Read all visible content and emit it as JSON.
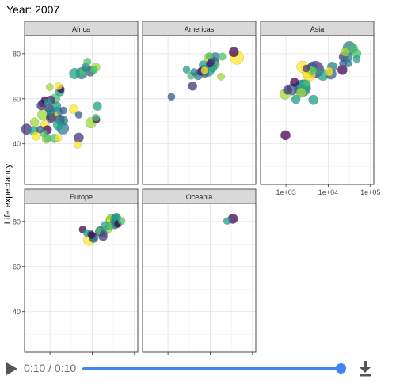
{
  "title": "Year: 2007",
  "player": {
    "time_text": "0:10 / 0:10",
    "progress": 1.0,
    "accent_color": "#4285f4",
    "play_icon": "play-icon",
    "download_icon": "download-icon"
  },
  "chart_data": {
    "type": "scatter",
    "layout": "faceted grid, 3 columns, free x and y scales per column/row",
    "xscale": "log10",
    "xlim": [
      250,
      120000
    ],
    "xtick_values": [
      1000,
      10000,
      100000
    ],
    "xtick_labels": [
      "1e+03",
      "1e+04",
      "1e+05"
    ],
    "ylim": [
      22,
      88
    ],
    "yticks": [
      40,
      60,
      80
    ],
    "ylabel": "Life expectancy",
    "xlabel": "",
    "grid": true,
    "legend": "none",
    "size_encodes": "population",
    "color_encodes": "country (viridis palette)",
    "palette": [
      "#440154",
      "#46337e",
      "#365c8d",
      "#277f8e",
      "#1fa187",
      "#4ac16d",
      "#9fda3a",
      "#fde725"
    ],
    "facets": [
      {
        "name": "Africa",
        "points": [
          {
            "x": 6223,
            "y": 72.3,
            "size": 2,
            "color": "#4ac16d"
          },
          {
            "x": 4797,
            "y": 42.7,
            "size": 3,
            "color": "#46337e"
          },
          {
            "x": 1441,
            "y": 56.7,
            "size": 2,
            "color": "#1fa187"
          },
          {
            "x": 12570,
            "y": 50.7,
            "size": 1,
            "color": "#440154"
          },
          {
            "x": 1217,
            "y": 52.3,
            "size": 3,
            "color": "#fde725"
          },
          {
            "x": 430,
            "y": 49.6,
            "size": 2,
            "color": "#9fda3a"
          },
          {
            "x": 2042,
            "y": 50.4,
            "size": 3,
            "color": "#277f8e"
          },
          {
            "x": 706,
            "y": 44.7,
            "size": 1,
            "color": "#4ac16d"
          },
          {
            "x": 1704,
            "y": 50.7,
            "size": 3,
            "color": "#365c8d"
          },
          {
            "x": 986,
            "y": 65.2,
            "size": 1,
            "color": "#9fda3a"
          },
          {
            "x": 278,
            "y": 46.5,
            "size": 4,
            "color": "#46337e"
          },
          {
            "x": 3633,
            "y": 55.3,
            "size": 2,
            "color": "#fde725"
          },
          {
            "x": 1545,
            "y": 48.3,
            "size": 3,
            "color": "#1fa187"
          },
          {
            "x": 2082,
            "y": 54.8,
            "size": 1,
            "color": "#365c8d"
          },
          {
            "x": 5581,
            "y": 71.3,
            "size": 5,
            "color": "#277f8e"
          },
          {
            "x": 12154,
            "y": 51.6,
            "size": 1,
            "color": "#4ac16d"
          },
          {
            "x": 641,
            "y": 58.0,
            "size": 1,
            "color": "#46337e"
          },
          {
            "x": 691,
            "y": 52.9,
            "size": 5,
            "color": "#9fda3a"
          },
          {
            "x": 13206,
            "y": 56.7,
            "size": 2,
            "color": "#1fa187"
          },
          {
            "x": 753,
            "y": 59.4,
            "size": 1,
            "color": "#440154"
          },
          {
            "x": 1327,
            "y": 60.0,
            "size": 3,
            "color": "#4ac16d"
          },
          {
            "x": 942,
            "y": 56.0,
            "size": 2,
            "color": "#46337e"
          },
          {
            "x": 579,
            "y": 46.4,
            "size": 1,
            "color": "#365c8d"
          },
          {
            "x": 1463,
            "y": 54.1,
            "size": 4,
            "color": "#277f8e"
          },
          {
            "x": 1569,
            "y": 42.6,
            "size": 1,
            "color": "#fde725"
          },
          {
            "x": 415,
            "y": 45.7,
            "size": 2,
            "color": "#1fa187"
          },
          {
            "x": 12057,
            "y": 73.9,
            "size": 2,
            "color": "#9fda3a"
          },
          {
            "x": 1044,
            "y": 59.4,
            "size": 2,
            "color": "#46337e"
          },
          {
            "x": 759,
            "y": 48.3,
            "size": 2,
            "color": "#fde725"
          },
          {
            "x": 1042,
            "y": 54.5,
            "size": 2,
            "color": "#277f8e"
          },
          {
            "x": 1803,
            "y": 64.2,
            "size": 1,
            "color": "#440154"
          },
          {
            "x": 10957,
            "y": 72.8,
            "size": 1,
            "color": "#4ac16d"
          },
          {
            "x": 3820,
            "y": 71.2,
            "size": 4,
            "color": "#1fa187"
          },
          {
            "x": 824,
            "y": 42.1,
            "size": 2,
            "color": "#9fda3a"
          },
          {
            "x": 4811,
            "y": 52.9,
            "size": 1,
            "color": "#365c8d"
          },
          {
            "x": 620,
            "y": 56.9,
            "size": 2,
            "color": "#46337e"
          },
          {
            "x": 2014,
            "y": 46.9,
            "size": 6,
            "color": "#277f8e"
          },
          {
            "x": 7670,
            "y": 76.4,
            "size": 1,
            "color": "#4ac16d"
          },
          {
            "x": 863,
            "y": 46.2,
            "size": 2,
            "color": "#440154"
          },
          {
            "x": 1593,
            "y": 65.5,
            "size": 1,
            "color": "#fde725"
          },
          {
            "x": 1712,
            "y": 63.1,
            "size": 2,
            "color": "#1fa187"
          },
          {
            "x": 862,
            "y": 42.6,
            "size": 1,
            "color": "#4ac16d"
          },
          {
            "x": 9270,
            "y": 49.3,
            "size": 4,
            "color": "#9fda3a"
          },
          {
            "x": 4514,
            "y": 39.6,
            "size": 1,
            "color": "#fde725"
          },
          {
            "x": 1107,
            "y": 52.5,
            "size": 4,
            "color": "#365c8d"
          },
          {
            "x": 883,
            "y": 58.4,
            "size": 1,
            "color": "#1fa187"
          },
          {
            "x": 7093,
            "y": 73.9,
            "size": 2,
            "color": "#277f8e"
          },
          {
            "x": 1056,
            "y": 51.5,
            "size": 3,
            "color": "#46337e"
          },
          {
            "x": 1271,
            "y": 42.4,
            "size": 2,
            "color": "#4ac16d"
          },
          {
            "x": 470,
            "y": 43.5,
            "size": 2,
            "color": "#fde725"
          },
          {
            "x": 9000,
            "y": 72.1,
            "size": 3,
            "color": "#365c8d"
          }
        ]
      },
      {
        "name": "Americas",
        "points": [
          {
            "x": 12779,
            "y": 75.3,
            "size": 3,
            "color": "#4ac16d"
          },
          {
            "x": 3822,
            "y": 65.6,
            "size": 2,
            "color": "#46337e"
          },
          {
            "x": 9066,
            "y": 72.4,
            "size": 5,
            "color": "#1fa187"
          },
          {
            "x": 36319,
            "y": 80.7,
            "size": 3,
            "color": "#440154"
          },
          {
            "x": 13172,
            "y": 78.6,
            "size": 2,
            "color": "#277f8e"
          },
          {
            "x": 7007,
            "y": 72.9,
            "size": 3,
            "color": "#365c8d"
          },
          {
            "x": 9645,
            "y": 78.8,
            "size": 1,
            "color": "#4ac16d"
          },
          {
            "x": 8948,
            "y": 78.3,
            "size": 2,
            "color": "#9fda3a"
          },
          {
            "x": 6025,
            "y": 72.2,
            "size": 1,
            "color": "#440154"
          },
          {
            "x": 6873,
            "y": 74.99,
            "size": 2,
            "color": "#1fa187"
          },
          {
            "x": 5728,
            "y": 71.9,
            "size": 1,
            "color": "#46337e"
          },
          {
            "x": 5186,
            "y": 70.3,
            "size": 2,
            "color": "#277f8e"
          },
          {
            "x": 1202,
            "y": 60.9,
            "size": 1,
            "color": "#365c8d"
          },
          {
            "x": 3548,
            "y": 70.2,
            "size": 1,
            "color": "#4ac16d"
          },
          {
            "x": 7321,
            "y": 72.6,
            "size": 1,
            "color": "#fde725"
          },
          {
            "x": 11978,
            "y": 76.2,
            "size": 4,
            "color": "#46337e"
          },
          {
            "x": 2749,
            "y": 72.9,
            "size": 1,
            "color": "#1fa187"
          },
          {
            "x": 9809,
            "y": 75.5,
            "size": 1,
            "color": "#440154"
          },
          {
            "x": 4173,
            "y": 71.8,
            "size": 1,
            "color": "#277f8e"
          },
          {
            "x": 7409,
            "y": 71.4,
            "size": 2,
            "color": "#365c8d"
          },
          {
            "x": 19329,
            "y": 78.7,
            "size": 1,
            "color": "#4ac16d"
          },
          {
            "x": 18009,
            "y": 69.8,
            "size": 1,
            "color": "#9fda3a"
          },
          {
            "x": 42952,
            "y": 78.2,
            "size": 8,
            "color": "#fde725"
          },
          {
            "x": 10611,
            "y": 76.4,
            "size": 1,
            "color": "#46337e"
          },
          {
            "x": 11416,
            "y": 73.7,
            "size": 2,
            "color": "#1fa187"
          }
        ]
      },
      {
        "name": "Asia",
        "points": [
          {
            "x": 975,
            "y": 43.8,
            "size": 3,
            "color": "#440154"
          },
          {
            "x": 29796,
            "y": 75.6,
            "size": 1,
            "color": "#277f8e"
          },
          {
            "x": 1391,
            "y": 64.1,
            "size": 5,
            "color": "#365c8d"
          },
          {
            "x": 1714,
            "y": 59.7,
            "size": 2,
            "color": "#1fa187"
          },
          {
            "x": 4959,
            "y": 73.0,
            "size": 15,
            "color": "#46337e"
          },
          {
            "x": 39725,
            "y": 82.2,
            "size": 2,
            "color": "#4ac16d"
          },
          {
            "x": 2452,
            "y": 64.7,
            "size": 14,
            "color": "#277f8e"
          },
          {
            "x": 3541,
            "y": 70.7,
            "size": 7,
            "color": "#fde725"
          },
          {
            "x": 11606,
            "y": 71.0,
            "size": 4,
            "color": "#365c8d"
          },
          {
            "x": 4471,
            "y": 59.5,
            "size": 3,
            "color": "#1fa187"
          },
          {
            "x": 25523,
            "y": 80.7,
            "size": 2,
            "color": "#9fda3a"
          },
          {
            "x": 31656,
            "y": 82.6,
            "size": 7,
            "color": "#277f8e"
          },
          {
            "x": 4519,
            "y": 72.5,
            "size": 1,
            "color": "#4ac16d"
          },
          {
            "x": 1593,
            "y": 67.3,
            "size": 2,
            "color": "#440154"
          },
          {
            "x": 23348,
            "y": 78.6,
            "size": 3,
            "color": "#46337e"
          },
          {
            "x": 47307,
            "y": 77.6,
            "size": 1,
            "color": "#1fa187"
          },
          {
            "x": 10461,
            "y": 72.0,
            "size": 2,
            "color": "#fde725"
          },
          {
            "x": 12452,
            "y": 74.2,
            "size": 3,
            "color": "#277f8e"
          },
          {
            "x": 3096,
            "y": 66.8,
            "size": 1,
            "color": "#4ac16d"
          },
          {
            "x": 944,
            "y": 62.1,
            "size": 4,
            "color": "#9fda3a"
          },
          {
            "x": 1091,
            "y": 63.8,
            "size": 2,
            "color": "#46337e"
          },
          {
            "x": 22316,
            "y": 75.6,
            "size": 1,
            "color": "#365c8d"
          },
          {
            "x": 2606,
            "y": 65.5,
            "size": 8,
            "color": "#1fa187"
          },
          {
            "x": 3190,
            "y": 71.7,
            "size": 4,
            "color": "#fde725"
          },
          {
            "x": 21655,
            "y": 72.8,
            "size": 3,
            "color": "#440154"
          },
          {
            "x": 47143,
            "y": 80.0,
            "size": 2,
            "color": "#4ac16d"
          },
          {
            "x": 3970,
            "y": 72.4,
            "size": 2,
            "color": "#9fda3a"
          },
          {
            "x": 4185,
            "y": 74.1,
            "size": 3,
            "color": "#365c8d"
          },
          {
            "x": 28718,
            "y": 78.4,
            "size": 3,
            "color": "#277f8e"
          },
          {
            "x": 7458,
            "y": 70.6,
            "size": 5,
            "color": "#1fa187"
          },
          {
            "x": 2442,
            "y": 74.2,
            "size": 5,
            "color": "#fde725"
          },
          {
            "x": 3025,
            "y": 73.4,
            "size": 1,
            "color": "#46337e"
          },
          {
            "x": 2281,
            "y": 62.7,
            "size": 3,
            "color": "#9fda3a"
          }
        ]
      },
      {
        "name": "Europe",
        "points": [
          {
            "x": 5937,
            "y": 76.4,
            "size": 1,
            "color": "#440154"
          },
          {
            "x": 36126,
            "y": 79.8,
            "size": 2,
            "color": "#277f8e"
          },
          {
            "x": 33693,
            "y": 79.4,
            "size": 2,
            "color": "#365c8d"
          },
          {
            "x": 7446,
            "y": 74.9,
            "size": 1,
            "color": "#1fa187"
          },
          {
            "x": 10681,
            "y": 73.0,
            "size": 2,
            "color": "#46337e"
          },
          {
            "x": 14619,
            "y": 75.7,
            "size": 1,
            "color": "#4ac16d"
          },
          {
            "x": 22833,
            "y": 76.5,
            "size": 2,
            "color": "#9fda3a"
          },
          {
            "x": 35278,
            "y": 78.3,
            "size": 1,
            "color": "#1fa187"
          },
          {
            "x": 33207,
            "y": 79.3,
            "size": 1,
            "color": "#277f8e"
          },
          {
            "x": 30470,
            "y": 80.7,
            "size": 5,
            "color": "#365c8d"
          },
          {
            "x": 32170,
            "y": 79.4,
            "size": 6,
            "color": "#4ac16d"
          },
          {
            "x": 27538,
            "y": 79.5,
            "size": 2,
            "color": "#fde725"
          },
          {
            "x": 18009,
            "y": 73.3,
            "size": 2,
            "color": "#46337e"
          },
          {
            "x": 36181,
            "y": 81.8,
            "size": 1,
            "color": "#1fa187"
          },
          {
            "x": 40676,
            "y": 78.9,
            "size": 1,
            "color": "#440154"
          },
          {
            "x": 28570,
            "y": 80.5,
            "size": 5,
            "color": "#9fda3a"
          },
          {
            "x": 9254,
            "y": 74.5,
            "size": 1,
            "color": "#277f8e"
          },
          {
            "x": 36798,
            "y": 79.8,
            "size": 2,
            "color": "#365c8d"
          },
          {
            "x": 49357,
            "y": 80.2,
            "size": 1,
            "color": "#4ac16d"
          },
          {
            "x": 15390,
            "y": 75.6,
            "size": 3,
            "color": "#46337e"
          },
          {
            "x": 20510,
            "y": 78.1,
            "size": 2,
            "color": "#1fa187"
          },
          {
            "x": 10808,
            "y": 72.5,
            "size": 2,
            "color": "#277f8e"
          },
          {
            "x": 9787,
            "y": 74.0,
            "size": 1,
            "color": "#440154"
          },
          {
            "x": 18678,
            "y": 74.7,
            "size": 1,
            "color": "#365c8d"
          },
          {
            "x": 25768,
            "y": 77.9,
            "size": 1,
            "color": "#4ac16d"
          },
          {
            "x": 28821,
            "y": 80.9,
            "size": 4,
            "color": "#9fda3a"
          },
          {
            "x": 33860,
            "y": 80.9,
            "size": 2,
            "color": "#1fa187"
          },
          {
            "x": 37506,
            "y": 81.7,
            "size": 2,
            "color": "#277f8e"
          },
          {
            "x": 8458,
            "y": 71.8,
            "size": 5,
            "color": "#fde725"
          },
          {
            "x": 33203,
            "y": 79.4,
            "size": 5,
            "color": "#4ac16d"
          }
        ]
      },
      {
        "name": "Oceania",
        "points": [
          {
            "x": 34435,
            "y": 81.2,
            "size": 3,
            "color": "#440154"
          },
          {
            "x": 25185,
            "y": 80.2,
            "size": 1,
            "color": "#1fa187"
          }
        ]
      }
    ]
  }
}
